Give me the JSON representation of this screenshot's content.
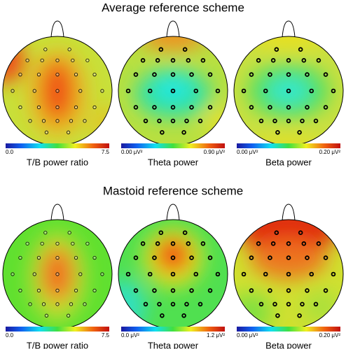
{
  "sections": [
    {
      "title": "Average reference scheme",
      "maps": [
        {
          "min_label": "0.0",
          "max_label": "7.5",
          "caption": "T/B power ratio"
        },
        {
          "min_label": "0.00 μV²",
          "max_label": "0.90 μV²",
          "caption": "Theta power"
        },
        {
          "min_label": "0.00 μV²",
          "max_label": "0.20 μV²",
          "caption": "Beta power"
        }
      ]
    },
    {
      "title": "Mastoid reference scheme",
      "maps": [
        {
          "min_label": "0.0",
          "max_label": "7.5",
          "caption": "T/B power ratio"
        },
        {
          "min_label": "0.0 μV²",
          "max_label": "1.2 μV²",
          "caption": "Theta power"
        },
        {
          "min_label": "0.00 μV²",
          "max_label": "0.20 μV²",
          "caption": "Beta power"
        }
      ]
    }
  ]
}
